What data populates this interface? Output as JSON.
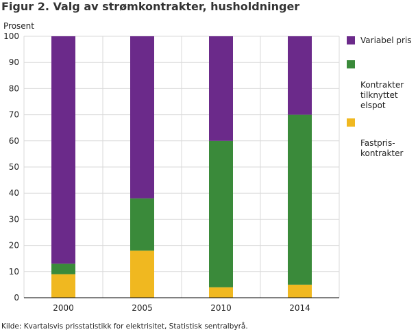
{
  "title": "Figur 2. Valg av strømkontrakter, husholdninger",
  "source": "Kilde: Kvartalsvis prisstatistikk for elektrisitet, Statistisk sentralbyrå.",
  "chart_data": {
    "type": "bar",
    "stacked": true,
    "title": "Figur 2. Valg av strømkontrakter, husholdninger",
    "xlabel": "",
    "ylabel": "Prosent",
    "ylim": [
      0,
      100
    ],
    "yticks": [
      0,
      10,
      20,
      30,
      40,
      50,
      60,
      70,
      80,
      90,
      100
    ],
    "grid": true,
    "legend_position": "right",
    "categories": [
      "2000",
      "2005",
      "2010",
      "2014"
    ],
    "series": [
      {
        "name": "Fastpris-\nkontrakter",
        "color": "#f0b820",
        "values": [
          9,
          18,
          4,
          5
        ]
      },
      {
        "name": "Kontrakter tilknyttet elspot",
        "color": "#3a8a3a",
        "values": [
          4,
          20,
          56,
          65
        ]
      },
      {
        "name": "Variabel pris",
        "color": "#6b2a8a",
        "values": [
          87,
          62,
          40,
          30
        ]
      }
    ],
    "legend_labels": [
      "Variabel pris",
      "Kontrakter\ntilknyttet\nelspot",
      "Fastpris-\nkontrakter"
    ],
    "legend_colors": [
      "#6b2a8a",
      "#3a8a3a",
      "#f0b820"
    ]
  }
}
